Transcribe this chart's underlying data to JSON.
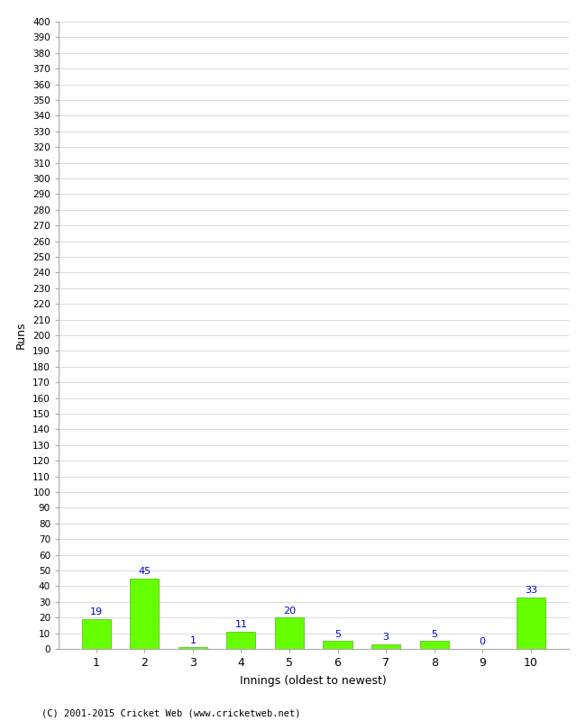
{
  "title": "",
  "xlabel": "Innings (oldest to newest)",
  "ylabel": "Runs",
  "categories": [
    "1",
    "2",
    "3",
    "4",
    "5",
    "6",
    "7",
    "8",
    "9",
    "10"
  ],
  "values": [
    19,
    45,
    1,
    11,
    20,
    5,
    3,
    5,
    0,
    33
  ],
  "bar_color": "#66ff00",
  "bar_edge_color": "#44bb00",
  "label_color": "#0000cc",
  "ylim": [
    0,
    400
  ],
  "background_color": "#ffffff",
  "grid_color": "#cccccc",
  "footer": "(C) 2001-2015 Cricket Web (www.cricketweb.net)"
}
